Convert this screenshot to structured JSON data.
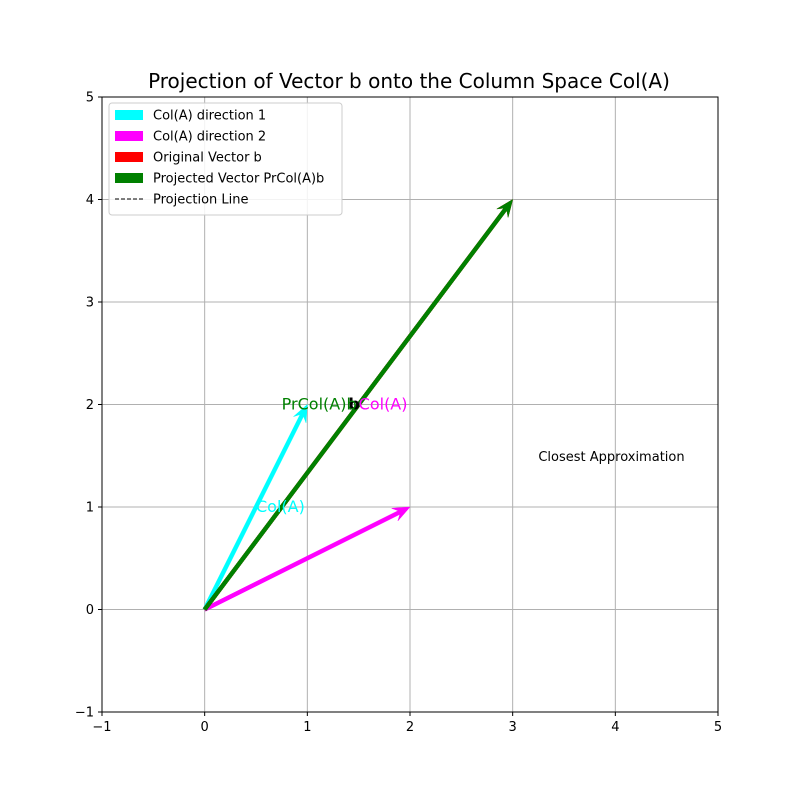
{
  "chart_data": {
    "type": "vector",
    "title": "Projection of Vector b onto the Column Space Col(A)",
    "xlabel": "",
    "ylabel": "",
    "xlim": [
      -1,
      5
    ],
    "ylim": [
      -1,
      5
    ],
    "xticks": [
      -1,
      0,
      1,
      2,
      3,
      4,
      5
    ],
    "yticks": [
      -1,
      0,
      1,
      2,
      3,
      4,
      5
    ],
    "x_tick_labels": [
      "−1",
      "0",
      "1",
      "2",
      "3",
      "4",
      "5"
    ],
    "y_tick_labels": [
      "−1",
      "0",
      "1",
      "2",
      "3",
      "4",
      "5"
    ],
    "grid": true,
    "legend_position": "top-left",
    "vectors": [
      {
        "name": "Col(A) direction 1",
        "origin": [
          0,
          0
        ],
        "tip": [
          1,
          2
        ],
        "color": "#00ffff"
      },
      {
        "name": "Col(A) direction 2",
        "origin": [
          0,
          0
        ],
        "tip": [
          2,
          1
        ],
        "color": "#ff00ff"
      },
      {
        "name": "Original Vector b",
        "origin": [
          0,
          0
        ],
        "tip": [
          3,
          4
        ],
        "color": "#ff0000"
      },
      {
        "name": "Projected Vector PrCol(A)b",
        "origin": [
          0,
          0
        ],
        "tip": [
          3,
          4
        ],
        "color": "#008000"
      }
    ],
    "legend": [
      {
        "label": "Col(A) direction 1",
        "color": "#00ffff",
        "kind": "patch"
      },
      {
        "label": "Col(A) direction 2",
        "color": "#ff00ff",
        "kind": "patch"
      },
      {
        "label": "Original Vector b",
        "color": "#ff0000",
        "kind": "patch"
      },
      {
        "label": "Projected Vector PrCol(A)b",
        "color": "#008000",
        "kind": "patch"
      },
      {
        "label": "Projection Line",
        "color": "#000000",
        "kind": "dashed-line"
      }
    ],
    "annotations": [
      {
        "text": "Col(A)",
        "x": 0.5,
        "y": 1.0,
        "color": "#00ffff",
        "anchor": "start"
      },
      {
        "text": "Col(A)",
        "x": 1.5,
        "y": 2.0,
        "color": "#ff00ff",
        "anchor": "start"
      },
      {
        "text": "b",
        "x": 1.4,
        "y": 2.0,
        "color": "#000000",
        "anchor": "start"
      },
      {
        "text": "PrCol(A)b",
        "x": 0.75,
        "y": 2.0,
        "color": "#008000",
        "anchor": "start"
      },
      {
        "text": "Closest Approximation",
        "x": 3.25,
        "y": 1.5,
        "color": "#000000",
        "anchor": "start"
      }
    ]
  }
}
